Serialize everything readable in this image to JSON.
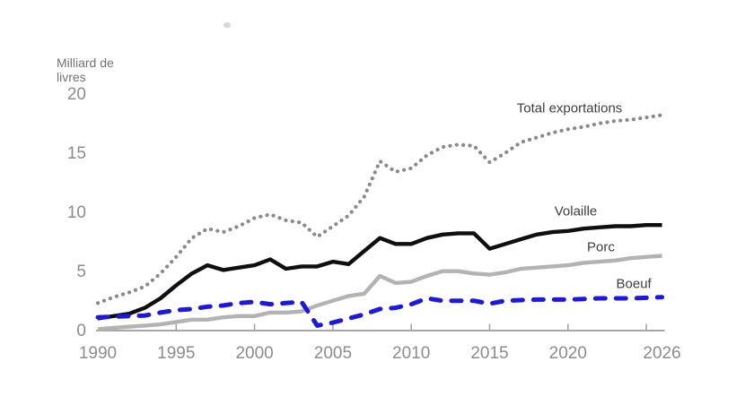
{
  "chart_data": {
    "type": "line",
    "unit_label_line1": "Milliard de",
    "unit_label_line2": "livres",
    "x": [
      1990,
      1991,
      1992,
      1993,
      1994,
      1995,
      1996,
      1997,
      1998,
      1999,
      2000,
      2001,
      2002,
      2003,
      2004,
      2005,
      2006,
      2007,
      2008,
      2009,
      2010,
      2011,
      2012,
      2013,
      2014,
      2015,
      2016,
      2017,
      2018,
      2019,
      2020,
      2021,
      2022,
      2023,
      2024,
      2025,
      2026
    ],
    "series": [
      {
        "name": "Total exportations",
        "style": "dotted",
        "color": "#8a8a8a",
        "values": [
          2.4,
          2.9,
          3.3,
          3.8,
          4.9,
          6.3,
          7.9,
          8.7,
          8.4,
          8.9,
          9.6,
          9.9,
          9.4,
          9.2,
          8.0,
          8.9,
          9.8,
          11.4,
          14.4,
          13.5,
          13.8,
          14.9,
          15.6,
          15.8,
          15.7,
          14.3,
          15.1,
          16.0,
          16.4,
          16.8,
          17.1,
          17.3,
          17.6,
          17.8,
          17.9,
          18.1,
          18.3
        ]
      },
      {
        "name": "Porc",
        "style": "solid",
        "color": "#b3b3b3",
        "values": [
          0.2,
          0.3,
          0.4,
          0.5,
          0.6,
          0.8,
          1.0,
          1.0,
          1.2,
          1.3,
          1.3,
          1.6,
          1.6,
          1.7,
          2.2,
          2.6,
          3.0,
          3.2,
          4.7,
          4.1,
          4.2,
          4.7,
          5.1,
          5.1,
          4.9,
          4.8,
          5.0,
          5.3,
          5.4,
          5.5,
          5.6,
          5.8,
          5.9,
          6.0,
          6.2,
          6.3,
          6.4
        ]
      },
      {
        "name": "Volaille",
        "style": "solid",
        "color": "#0f0f0f",
        "values": [
          1.1,
          1.3,
          1.5,
          2.0,
          2.8,
          3.9,
          4.9,
          5.6,
          5.2,
          5.4,
          5.6,
          6.1,
          5.3,
          5.5,
          5.5,
          5.9,
          5.7,
          6.8,
          7.9,
          7.4,
          7.4,
          7.9,
          8.2,
          8.3,
          8.3,
          7.0,
          7.4,
          7.8,
          8.2,
          8.4,
          8.5,
          8.7,
          8.8,
          8.9,
          8.9,
          9.0,
          9.0
        ]
      },
      {
        "name": "Boeuf",
        "style": "dashed",
        "color": "#1c18dd",
        "values": [
          1.2,
          1.25,
          1.3,
          1.35,
          1.6,
          1.8,
          1.9,
          2.1,
          2.2,
          2.4,
          2.5,
          2.3,
          2.4,
          2.5,
          0.5,
          0.75,
          1.1,
          1.45,
          1.9,
          2.0,
          2.3,
          2.8,
          2.6,
          2.6,
          2.6,
          2.35,
          2.6,
          2.65,
          2.7,
          2.7,
          2.7,
          2.75,
          2.8,
          2.8,
          2.8,
          2.85,
          2.9
        ]
      }
    ],
    "annotations": [
      {
        "text": "Total exportations",
        "year": 2020.1,
        "value": 18.9
      },
      {
        "text": "Volaille",
        "year": 2020.5,
        "value": 10.15
      },
      {
        "text": "Porc",
        "year": 2022.1,
        "value": 7.1
      },
      {
        "text": "Boeuf",
        "year": 2024.2,
        "value": 4.0
      }
    ],
    "xtick_labels": [
      {
        "label": "1990",
        "year": 1990
      },
      {
        "label": "1995",
        "year": 1995
      },
      {
        "label": "2000",
        "year": 2000
      },
      {
        "label": "2005",
        "year": 2005
      },
      {
        "label": "2010",
        "year": 2010
      },
      {
        "label": "2015",
        "year": 2015
      },
      {
        "label": "2020",
        "year": 2020
      },
      {
        "label": "2026",
        "year": 2026
      }
    ],
    "xtick_marks_years": [
      1995,
      2000,
      2005,
      2010,
      2015,
      2020,
      2025
    ],
    "ytick_labels": [
      0,
      5,
      10,
      15,
      20
    ],
    "xlim": [
      1990,
      2026
    ],
    "ylim": [
      0,
      20
    ],
    "grid": false,
    "legend_position": "inline-labels",
    "axis_color": "#a6a6a6"
  }
}
